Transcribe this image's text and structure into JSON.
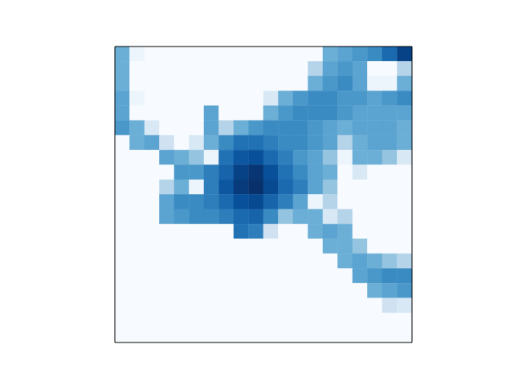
{
  "chart_data": {
    "type": "heatmap",
    "color": "Blues",
    "tick_labels": false,
    "cells": [
      [
        5,
        0.5,
        0,
        0,
        0,
        0,
        0,
        0,
        0,
        0,
        0,
        0,
        0,
        0,
        5,
        5.5,
        6,
        6.5,
        7.8,
        9.3
      ],
      [
        5,
        0,
        0,
        0,
        0,
        0,
        0,
        0,
        0,
        0,
        0,
        0,
        0,
        3,
        5.5,
        6,
        5.5,
        0,
        0,
        3
      ],
      [
        5,
        0,
        0,
        0,
        0,
        0,
        0,
        0,
        0,
        0,
        0,
        0,
        0,
        5,
        6,
        6.5,
        5.5,
        0.5,
        0.5,
        5
      ],
      [
        5.5,
        0.5,
        0,
        0,
        0,
        0,
        0,
        0,
        0,
        0,
        1.5,
        5,
        6,
        6.5,
        6.5,
        6,
        6,
        5.5,
        6,
        6.5
      ],
      [
        5.5,
        0,
        0,
        0,
        0,
        0,
        5.5,
        0,
        0,
        0,
        5,
        6,
        6.5,
        6.5,
        6.5,
        6,
        5.5,
        5.5,
        5.5,
        5.5
      ],
      [
        6,
        5,
        1.5,
        0,
        0,
        0,
        5.5,
        3,
        5,
        6,
        6.5,
        6.5,
        6.5,
        6,
        5.5,
        5,
        5.5,
        5.5,
        5.5,
        5
      ],
      [
        0,
        5,
        5.5,
        2,
        0,
        1.5,
        5,
        6.5,
        7.5,
        7.5,
        7,
        6.5,
        6.5,
        6,
        5.5,
        3,
        5,
        5.5,
        5.5,
        5
      ],
      [
        0,
        0,
        0,
        5.5,
        5,
        4,
        0.5,
        7.5,
        8.5,
        8.8,
        7.8,
        7,
        6,
        5.5,
        4,
        0.5,
        5,
        5,
        4,
        1.5
      ],
      [
        0,
        0,
        0,
        0,
        6,
        6,
        7,
        8,
        9.3,
        9.8,
        8.8,
        7.5,
        6.5,
        5.5,
        5,
        0,
        1.5,
        0,
        0,
        0
      ],
      [
        0,
        0,
        0,
        3,
        5,
        0.5,
        7,
        8.5,
        9.6,
        10,
        9,
        7.8,
        7,
        5.5,
        4,
        0,
        0,
        0,
        0,
        0
      ],
      [
        0,
        0,
        0,
        5.5,
        6.5,
        6.5,
        7,
        7.8,
        8.8,
        9,
        8,
        7,
        5.5,
        0.5,
        3,
        0,
        0,
        0,
        0,
        0
      ],
      [
        0,
        0,
        0,
        5.5,
        6,
        6.5,
        6.5,
        7,
        7.8,
        8,
        6.5,
        4,
        5,
        5,
        1.5,
        3,
        0,
        0,
        0,
        0
      ],
      [
        0,
        0,
        0,
        0,
        0,
        0,
        0,
        0,
        7.5,
        7,
        2,
        0,
        0,
        5,
        5.5,
        5,
        0,
        0,
        0,
        0
      ],
      [
        0,
        0,
        0,
        0,
        0,
        0,
        0,
        0,
        0,
        0,
        0,
        0,
        0,
        0,
        5,
        5,
        4,
        0,
        0,
        0
      ],
      [
        0,
        0,
        0,
        0,
        0,
        0,
        0,
        0,
        0,
        0,
        0,
        0,
        0,
        0,
        0,
        5,
        5.5,
        5,
        4,
        3
      ],
      [
        0,
        0,
        0,
        0,
        0,
        0,
        0,
        0,
        0,
        0,
        0,
        0,
        0,
        0,
        0,
        0,
        5.5,
        6,
        6.5,
        6.5
      ],
      [
        0,
        0,
        0,
        0,
        0,
        0,
        0,
        0,
        0,
        0,
        0,
        0,
        0,
        0,
        0,
        0,
        0,
        5,
        5.5,
        6
      ],
      [
        0,
        0,
        0,
        0,
        0,
        0,
        0,
        0,
        0,
        0,
        0,
        0,
        0,
        0,
        0,
        0,
        0,
        0,
        2,
        1.5
      ],
      [
        0,
        0,
        0,
        0,
        0,
        0,
        0,
        0,
        0,
        0,
        0,
        0,
        0,
        0,
        0,
        0,
        0,
        0,
        0,
        0
      ],
      [
        0,
        0,
        0,
        0,
        0,
        0,
        0,
        0,
        0,
        0,
        0,
        0,
        0,
        0,
        0,
        0,
        0,
        0,
        0,
        0
      ]
    ]
  }
}
